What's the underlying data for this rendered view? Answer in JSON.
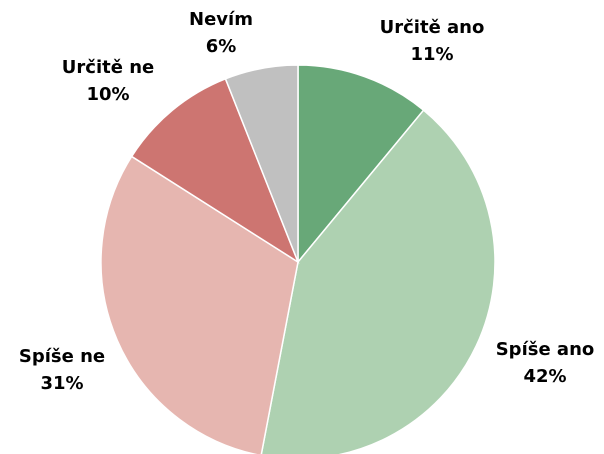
{
  "chart_data": {
    "type": "pie",
    "categories": [
      "Určitě ano",
      "Spíše ano",
      "Spíše ne",
      "Určitě ne",
      "Nevím"
    ],
    "values": [
      11,
      42,
      31,
      10,
      6
    ],
    "value_labels": [
      "11%",
      "42%",
      "31%",
      "10%",
      "6%"
    ],
    "colors": [
      "#68a878",
      "#aed1b1",
      "#e6b6b0",
      "#cd7571",
      "#c0c0c0"
    ]
  }
}
